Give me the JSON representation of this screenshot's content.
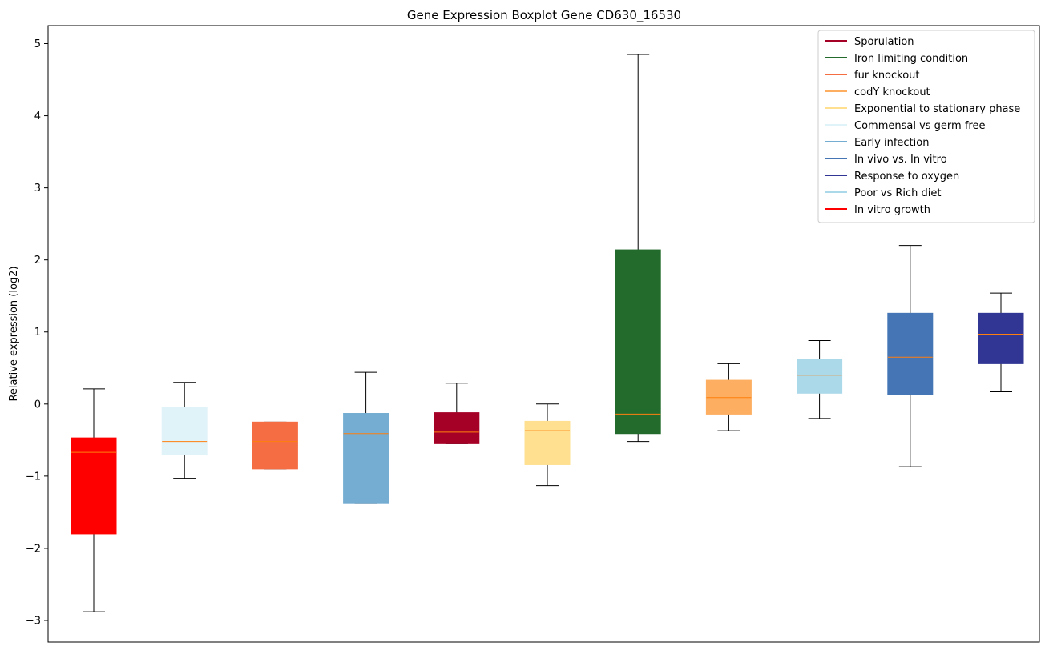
{
  "chart_data": {
    "type": "boxplot",
    "title": "Gene Expression Boxplot Gene CD630_16530",
    "xlabel": "",
    "ylabel": "Relative expression (log2)",
    "ylim": [
      -3.3,
      5.25
    ],
    "yticks": [
      -3,
      -2,
      -1,
      0,
      1,
      2,
      3,
      4,
      5
    ],
    "ytick_labels": [
      "−3",
      "−2",
      "−1",
      "0",
      "1",
      "2",
      "3",
      "4",
      "5"
    ],
    "grid": false,
    "legend_position": "top-right",
    "median_color": "#ff7f0e",
    "whisker_color": "#000000",
    "legend": [
      {
        "label": "Sporulation",
        "color": "#a50026"
      },
      {
        "label": "Iron limiting condition",
        "color": "#226b2c"
      },
      {
        "label": "fur knockout",
        "color": "#f46d43"
      },
      {
        "label": "codY knockout",
        "color": "#fdae61"
      },
      {
        "label": "Exponential to stationary phase",
        "color": "#fee090"
      },
      {
        "label": "Commensal vs germ free",
        "color": "#e0f3f8"
      },
      {
        "label": "Early infection",
        "color": "#74add1"
      },
      {
        "label": "In vivo vs. In vitro",
        "color": "#4575b4"
      },
      {
        "label": "Response to oxygen",
        "color": "#313695"
      },
      {
        "label": "Poor vs Rich diet",
        "color": "#abd9e9"
      },
      {
        "label": "In vitro growth",
        "color": "#ff0000"
      }
    ],
    "boxes": [
      {
        "condition": "In vitro growth",
        "color": "#ff0000",
        "whisker_low": -2.88,
        "q1": -1.8,
        "median": -0.67,
        "q3": -0.47,
        "whisker_high": 0.21
      },
      {
        "condition": "Commensal vs germ free",
        "color": "#e0f3f8",
        "whisker_low": -1.03,
        "q1": -0.7,
        "median": -0.52,
        "q3": -0.05,
        "whisker_high": 0.3
      },
      {
        "condition": "fur knockout",
        "color": "#f46d43",
        "whisker_low": -0.9,
        "q1": -0.9,
        "median": -0.52,
        "q3": -0.25,
        "whisker_high": -0.25
      },
      {
        "condition": "Early infection",
        "color": "#74add1",
        "whisker_low": -1.37,
        "q1": -1.37,
        "median": -0.41,
        "q3": -0.13,
        "whisker_high": 0.44
      },
      {
        "condition": "Sporulation",
        "color": "#a50026",
        "whisker_low": -0.55,
        "q1": -0.55,
        "median": -0.39,
        "q3": -0.12,
        "whisker_high": 0.29
      },
      {
        "condition": "Exponential to stationary phase",
        "color": "#fee090",
        "whisker_low": -1.13,
        "q1": -0.84,
        "median": -0.37,
        "q3": -0.24,
        "whisker_high": 0.0
      },
      {
        "condition": "Iron limiting condition",
        "color": "#226b2c",
        "whisker_low": -0.52,
        "q1": -0.41,
        "median": -0.14,
        "q3": 2.14,
        "whisker_high": 4.85
      },
      {
        "condition": "codY knockout",
        "color": "#fdae61",
        "whisker_low": -0.37,
        "q1": -0.14,
        "median": 0.09,
        "q3": 0.33,
        "whisker_high": 0.56
      },
      {
        "condition": "Poor vs Rich diet",
        "color": "#abd9e9",
        "whisker_low": -0.2,
        "q1": 0.15,
        "median": 0.4,
        "q3": 0.62,
        "whisker_high": 0.88
      },
      {
        "condition": "In vivo vs. In vitro",
        "color": "#4575b4",
        "whisker_low": -0.87,
        "q1": 0.13,
        "median": 0.65,
        "q3": 1.26,
        "whisker_high": 2.2
      },
      {
        "condition": "Response to oxygen",
        "color": "#313695",
        "whisker_low": 0.17,
        "q1": 0.56,
        "median": 0.97,
        "q3": 1.26,
        "whisker_high": 1.54
      }
    ]
  }
}
